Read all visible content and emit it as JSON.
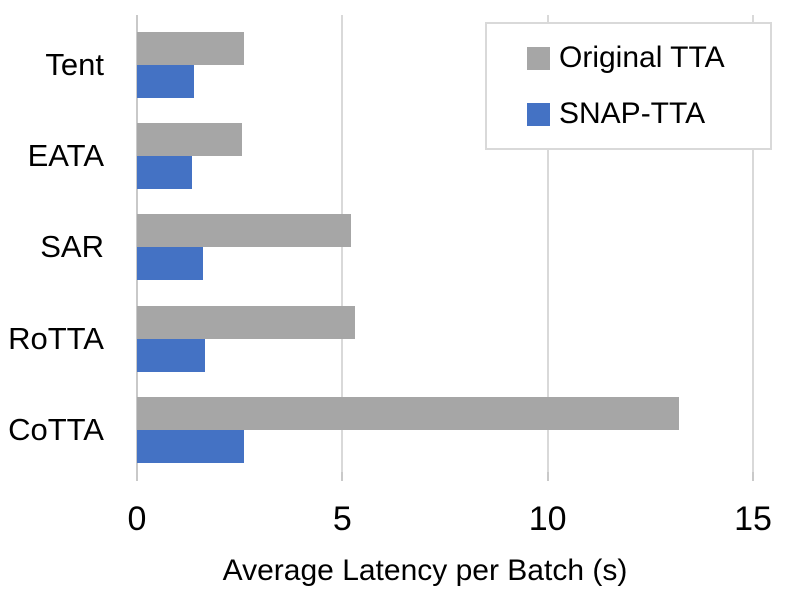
{
  "figure": {
    "background_color": "#ffffff",
    "text_color": "#000000",
    "gridline_color": "#d9d9d9",
    "axis_line_color": "#c9c9c9",
    "legend_border_color": "#d9d9d9"
  },
  "chart_data": {
    "type": "bar",
    "orientation": "horizontal",
    "title": "",
    "xlabel": "Average Latency per Batch (s)",
    "ylabel": "",
    "categories": [
      "Tent",
      "EATA",
      "SAR",
      "RoTTA",
      "CoTTA"
    ],
    "series": [
      {
        "name": "Original TTA",
        "color": "#a6a6a6",
        "values": [
          2.6,
          2.55,
          5.2,
          5.3,
          13.2
        ]
      },
      {
        "name": "SNAP-TTA",
        "color": "#4472c4",
        "values": [
          1.4,
          1.35,
          1.6,
          1.65,
          2.6
        ]
      }
    ],
    "xlim": [
      0,
      15
    ],
    "xticks": [
      0,
      5,
      10,
      15
    ],
    "grid": true,
    "legend_position": "top-right"
  }
}
